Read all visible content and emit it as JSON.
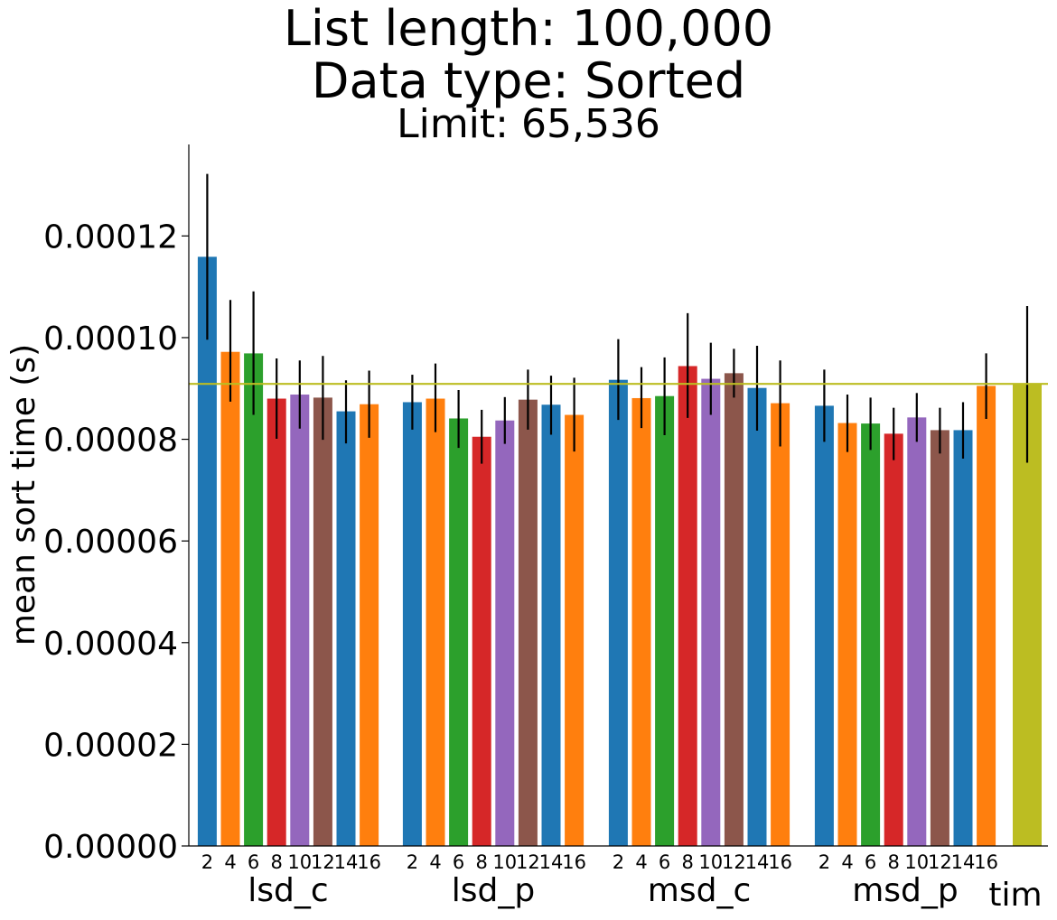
{
  "chart_data": {
    "type": "bar",
    "title_lines": [
      "List length: 100,000",
      "Data type: Sorted",
      "Limit: 65,536"
    ],
    "ylabel": "mean sort time (s)",
    "xlabel": "",
    "ylim": [
      0,
      0.000138
    ],
    "y_ticks": [
      "0.00000",
      "0.00002",
      "0.00004",
      "0.00006",
      "0.00008",
      "0.00010",
      "0.00012"
    ],
    "y_tick_values": [
      0,
      2e-05,
      4e-05,
      6e-05,
      8e-05,
      0.0001,
      0.00012
    ],
    "grid": false,
    "reference_line": {
      "value": 9.09e-05,
      "color": "#bcbd22"
    },
    "palette": [
      "#1f77b4",
      "#ff7f0e",
      "#2ca02c",
      "#d62728",
      "#9467bd",
      "#8c564b",
      "#1f77b4",
      "#ff7f0e"
    ],
    "groups": [
      {
        "name": "lsd_c",
        "labels": [
          "2",
          "4",
          "6",
          "8",
          "10",
          "12",
          "14",
          "16"
        ],
        "values": [
          0.0001159,
          9.72e-05,
          9.69e-05,
          8.8e-05,
          8.88e-05,
          8.82e-05,
          8.55e-05,
          8.69e-05
        ],
        "err_low": [
          9.96e-05,
          8.74e-05,
          8.48e-05,
          8.01e-05,
          8.21e-05,
          7.99e-05,
          7.92e-05,
          8.03e-05
        ],
        "err_high": [
          0.0001322,
          0.0001074,
          0.0001091,
          9.59e-05,
          9.55e-05,
          9.64e-05,
          9.16e-05,
          9.35e-05
        ]
      },
      {
        "name": "lsd_p",
        "labels": [
          "2",
          "4",
          "6",
          "8",
          "10",
          "12",
          "14",
          "16"
        ],
        "values": [
          8.73e-05,
          8.8e-05,
          8.41e-05,
          8.05e-05,
          8.37e-05,
          8.78e-05,
          8.68e-05,
          8.48e-05
        ],
        "err_low": [
          8.19e-05,
          8.14e-05,
          7.83e-05,
          7.52e-05,
          7.91e-05,
          8.19e-05,
          8.09e-05,
          7.76e-05
        ],
        "err_high": [
          9.27e-05,
          9.49e-05,
          8.97e-05,
          8.58e-05,
          8.83e-05,
          9.37e-05,
          9.25e-05,
          9.21e-05
        ]
      },
      {
        "name": "msd_c",
        "labels": [
          "2",
          "4",
          "6",
          "8",
          "10",
          "12",
          "14",
          "16"
        ],
        "values": [
          9.17e-05,
          8.81e-05,
          8.85e-05,
          9.44e-05,
          9.19e-05,
          9.3e-05,
          9.01e-05,
          8.71e-05
        ],
        "err_low": [
          8.38e-05,
          8.22e-05,
          8.08e-05,
          8.42e-05,
          8.48e-05,
          8.82e-05,
          8.17e-05,
          7.86e-05
        ],
        "err_high": [
          9.97e-05,
          9.42e-05,
          9.61e-05,
          0.0001048,
          9.9e-05,
          9.78e-05,
          9.84e-05,
          9.55e-05
        ]
      },
      {
        "name": "msd_p",
        "labels": [
          "2",
          "4",
          "6",
          "8",
          "10",
          "12",
          "14",
          "16"
        ],
        "values": [
          8.66e-05,
          8.32e-05,
          8.31e-05,
          8.11e-05,
          8.43e-05,
          8.18e-05,
          8.18e-05,
          9.05e-05
        ],
        "err_low": [
          7.95e-05,
          7.75e-05,
          7.79e-05,
          7.59e-05,
          7.95e-05,
          7.72e-05,
          7.62e-05,
          8.4e-05
        ],
        "err_high": [
          9.37e-05,
          8.88e-05,
          8.82e-05,
          8.62e-05,
          8.91e-05,
          8.62e-05,
          8.73e-05,
          9.69e-05
        ]
      },
      {
        "name": "tim",
        "labels": [
          ""
        ],
        "values": [
          9.09e-05
        ],
        "err_low": [
          7.54e-05
        ],
        "err_high": [
          0.0001062
        ],
        "color": "#bcbd22"
      }
    ]
  }
}
